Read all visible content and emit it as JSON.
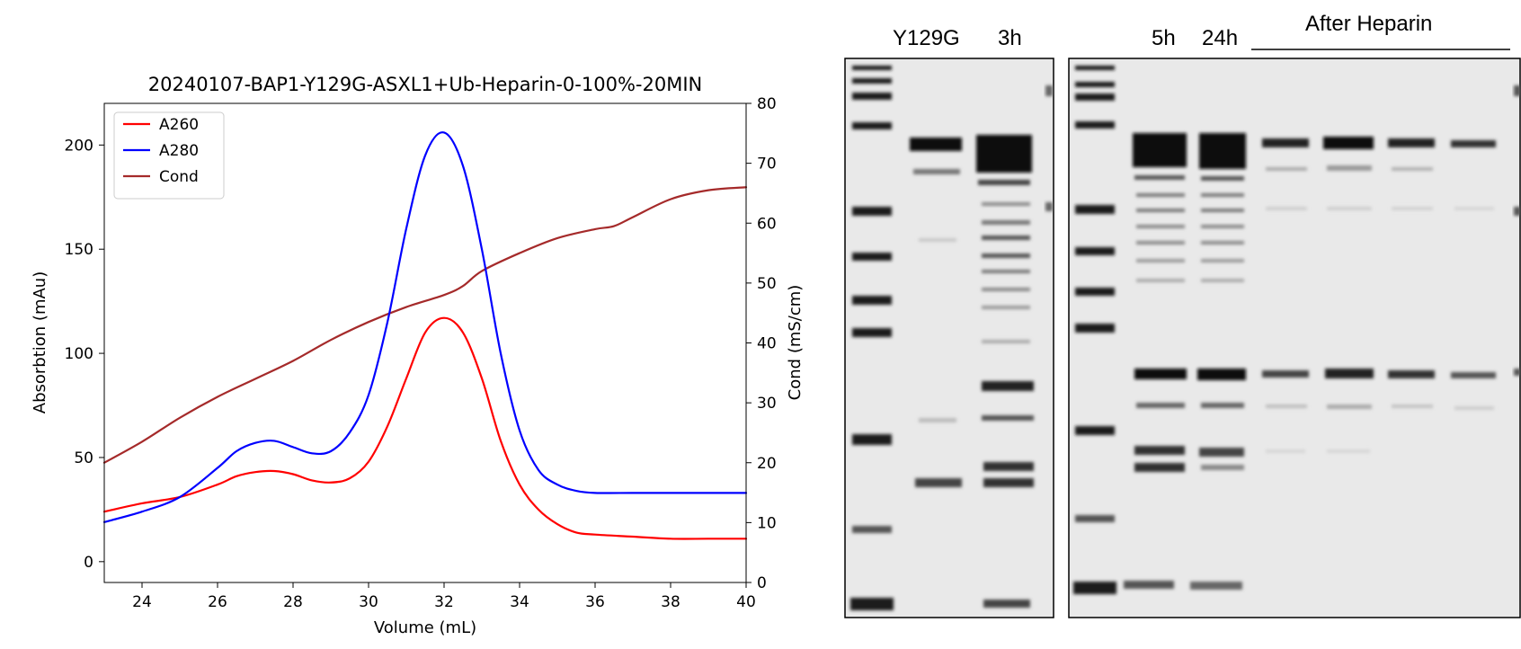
{
  "chart_data": {
    "type": "line",
    "title": "20240107-BAP1-Y129G-ASXL1+Ub-Heparin-0-100%-20MIN",
    "xlabel": "Volume (mL)",
    "ylabel": "Absorbtion (mAu)",
    "y2label": "Cond (mS/cm)",
    "xlim": [
      23,
      40
    ],
    "ylim": [
      -10,
      220
    ],
    "y2lim": [
      0,
      80
    ],
    "xticks": [
      "24",
      "26",
      "28",
      "30",
      "32",
      "34",
      "36",
      "38",
      "40"
    ],
    "yticks": [
      "0",
      "50",
      "100",
      "150",
      "200"
    ],
    "y2ticks": [
      "0",
      "10",
      "20",
      "30",
      "40",
      "50",
      "60",
      "70",
      "80"
    ],
    "grid": false,
    "legend_position": "top-left",
    "series": [
      {
        "name": "A260",
        "color": "#ff0000",
        "axis": "left",
        "x": [
          23,
          24,
          25,
          26,
          26.5,
          27,
          27.5,
          28,
          28.5,
          29,
          29.5,
          30,
          30.5,
          31,
          31.5,
          32,
          32.5,
          33,
          33.5,
          34,
          34.5,
          35,
          35.5,
          36,
          37,
          38,
          39,
          40
        ],
        "values": [
          24,
          28,
          31,
          37,
          41,
          43,
          43.5,
          42,
          39,
          38,
          40,
          48,
          65,
          88,
          110,
          117,
          110,
          88,
          58,
          37,
          25,
          18,
          14,
          13,
          12,
          11,
          11,
          11
        ]
      },
      {
        "name": "A280",
        "color": "#0000ff",
        "axis": "left",
        "x": [
          23,
          24,
          25,
          26,
          26.5,
          27,
          27.5,
          28,
          28.5,
          29,
          29.5,
          30,
          30.5,
          31,
          31.5,
          32,
          32.5,
          33,
          33.5,
          34,
          34.5,
          35,
          35.5,
          36,
          37,
          38,
          39,
          40
        ],
        "values": [
          19,
          24,
          31,
          45,
          53,
          57,
          58,
          55,
          52,
          53,
          62,
          80,
          115,
          160,
          195,
          206,
          190,
          150,
          100,
          63,
          44,
          37,
          34,
          33,
          33,
          33,
          33,
          33
        ]
      },
      {
        "name": "Cond",
        "color": "#a52a2a",
        "axis": "right",
        "x": [
          23,
          24,
          25,
          26,
          27,
          28,
          29,
          30,
          31,
          32,
          32.5,
          33,
          34,
          35,
          36,
          36.5,
          37,
          38,
          39,
          40
        ],
        "values": [
          20,
          23.5,
          27.5,
          31,
          34,
          37,
          40.5,
          43.5,
          46,
          48,
          49.5,
          52,
          55,
          57.5,
          59,
          59.5,
          61,
          64,
          65.5,
          66
        ]
      }
    ]
  },
  "gel": {
    "left_panel_labels": [
      "Y129G",
      "3h"
    ],
    "right_panel_labels": [
      "5h",
      "24h"
    ],
    "group_label": "After Heparin"
  }
}
